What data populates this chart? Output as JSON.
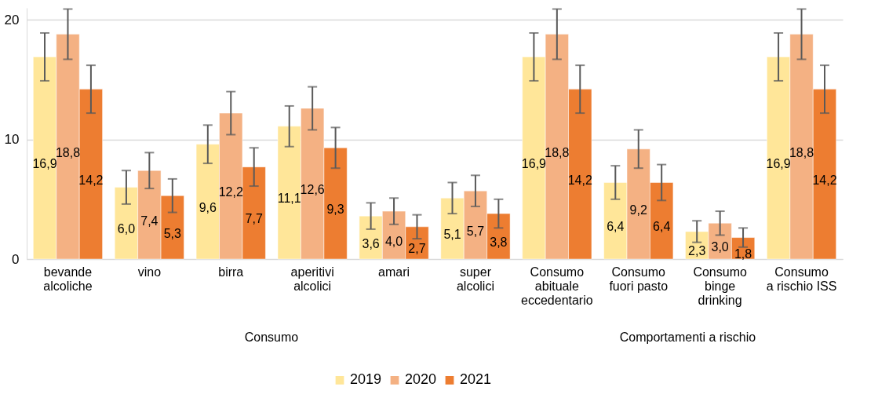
{
  "chart_data": {
    "type": "bar",
    "categories": [
      "bevande\nalcoliche",
      "vino",
      "birra",
      "aperitivi\nalcolici",
      "amari",
      "super\nalcolici",
      "Consumo\nabituale\neccedentario",
      "Consumo\nfuori pasto",
      "Consumo\nbinge\ndrinking",
      "Consumo\na rischio ISS"
    ],
    "series": [
      {
        "name": "2019",
        "color": "#ffe699",
        "values": [
          16.9,
          6.0,
          9.6,
          11.1,
          3.6,
          5.1,
          16.9,
          6.4,
          2.3,
          16.9
        ],
        "errors": [
          2.0,
          1.4,
          1.6,
          1.7,
          1.1,
          1.3,
          2.0,
          1.4,
          0.9,
          2.0
        ],
        "value_labels": [
          "16,9",
          "6,0",
          "9,6",
          "11,1",
          "3,6",
          "5,1",
          "16,9",
          "6,4",
          "2,3",
          "16,9"
        ]
      },
      {
        "name": "2020",
        "color": "#f4b183",
        "values": [
          18.8,
          7.4,
          12.2,
          12.6,
          4.0,
          5.7,
          18.8,
          9.2,
          3.0,
          18.8
        ],
        "errors": [
          2.1,
          1.5,
          1.8,
          1.8,
          1.1,
          1.3,
          2.1,
          1.6,
          1.0,
          2.1
        ],
        "value_labels": [
          "18,8",
          "7,4",
          "12,2",
          "12,6",
          "4,0",
          "5,7",
          "18,8",
          "9,2",
          "3,0",
          "18,8"
        ]
      },
      {
        "name": "2021",
        "color": "#ed7d31",
        "values": [
          14.2,
          5.3,
          7.7,
          9.3,
          2.7,
          3.8,
          14.2,
          6.4,
          1.8,
          14.2
        ],
        "errors": [
          2.0,
          1.4,
          1.6,
          1.7,
          1.0,
          1.2,
          2.0,
          1.5,
          0.8,
          2.0
        ],
        "value_labels": [
          "14,2",
          "5,3",
          "7,7",
          "9,3",
          "2,7",
          "3,8",
          "14,2",
          "6,4",
          "1,8",
          "14,2"
        ]
      }
    ],
    "ylim": [
      0,
      21
    ],
    "yticks": [
      0,
      10,
      20
    ],
    "grid": "y",
    "legend": "bottom",
    "annotations": [
      "Consumo",
      "Comportamenti a rischio"
    ]
  }
}
